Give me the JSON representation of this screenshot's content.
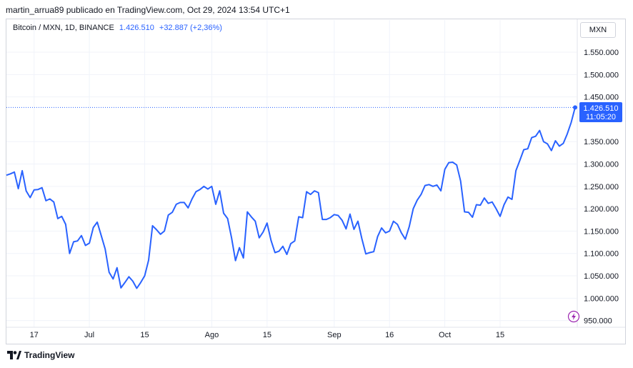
{
  "header": {
    "text": "martin_arrua89 publicado en TradingView.com, Oct 29, 2024 13:54 UTC+1"
  },
  "legend": {
    "symbol": "Bitcoin / MXN, 1D, BINANCE",
    "price": "1.426.510",
    "change": "+32.887 (+2,36%)"
  },
  "currency_button": {
    "label": "MXN"
  },
  "price_tag": {
    "price": "1.426.510",
    "countdown": "11:05:20"
  },
  "footer": {
    "brand": "TradingView"
  },
  "colors": {
    "line": "#2962ff",
    "grid": "#f0f3fa",
    "tag_bg": "#2962ff",
    "flash": "#9c27b0"
  },
  "icons": {
    "flash": "lightning-icon",
    "logo": "tradingview-logo-icon"
  },
  "chart_data": {
    "type": "line",
    "title": "",
    "xlabel": "",
    "ylabel": "",
    "ylim": [
      935000,
      1590000
    ],
    "y_ticks": [
      {
        "value": 950000,
        "label": "950.000"
      },
      {
        "value": 1000000,
        "label": "1.000.000"
      },
      {
        "value": 1050000,
        "label": "1.050.000"
      },
      {
        "value": 1100000,
        "label": "1.100.000"
      },
      {
        "value": 1150000,
        "label": "1.150.000"
      },
      {
        "value": 1200000,
        "label": "1.200.000"
      },
      {
        "value": 1250000,
        "label": "1.250.000"
      },
      {
        "value": 1300000,
        "label": "1.300.000"
      },
      {
        "value": 1350000,
        "label": "1.350.000"
      },
      {
        "value": 1450000,
        "label": "1.450.000"
      },
      {
        "value": 1500000,
        "label": "1.500.000"
      },
      {
        "value": 1550000,
        "label": "1.550.000"
      }
    ],
    "x_ticks": [
      {
        "index": 7,
        "label": "17"
      },
      {
        "index": 21,
        "label": "Jul"
      },
      {
        "index": 35,
        "label": "15"
      },
      {
        "index": 52,
        "label": "Ago"
      },
      {
        "index": 66,
        "label": "15"
      },
      {
        "index": 83,
        "label": "Sep"
      },
      {
        "index": 97,
        "label": "16"
      },
      {
        "index": 111,
        "label": "Oct"
      },
      {
        "index": 125,
        "label": "15"
      }
    ],
    "series": [
      {
        "values": [
          1275000,
          1278000,
          1282000,
          1245000,
          1285000,
          1240000,
          1225000,
          1242000,
          1243000,
          1247000,
          1218000,
          1222000,
          1215000,
          1178000,
          1183000,
          1165000,
          1100000,
          1126000,
          1128000,
          1140000,
          1118000,
          1123000,
          1158000,
          1170000,
          1140000,
          1110000,
          1058000,
          1043000,
          1068000,
          1023000,
          1035000,
          1048000,
          1038000,
          1022000,
          1035000,
          1050000,
          1085000,
          1162000,
          1153000,
          1143000,
          1150000,
          1186000,
          1192000,
          1210000,
          1214000,
          1214000,
          1202000,
          1222000,
          1238000,
          1243000,
          1250000,
          1244000,
          1250000,
          1210000,
          1240000,
          1190000,
          1178000,
          1135000,
          1084000,
          1113000,
          1090000,
          1193000,
          1182000,
          1172000,
          1135000,
          1148000,
          1168000,
          1129000,
          1102000,
          1105000,
          1116000,
          1098000,
          1122000,
          1128000,
          1182000,
          1180000,
          1238000,
          1232000,
          1240000,
          1236000,
          1176000,
          1176000,
          1180000,
          1187000,
          1185000,
          1174000,
          1155000,
          1188000,
          1154000,
          1172000,
          1133000,
          1099000,
          1102000,
          1104000,
          1138000,
          1157000,
          1146000,
          1150000,
          1172000,
          1165000,
          1146000,
          1132000,
          1160000,
          1200000,
          1219000,
          1232000,
          1252000,
          1254000,
          1250000,
          1253000,
          1240000,
          1288000,
          1303000,
          1304000,
          1298000,
          1262000,
          1193000,
          1192000,
          1181000,
          1209000,
          1208000,
          1224000,
          1212000,
          1215000,
          1200000,
          1183000,
          1209000,
          1226000,
          1221000,
          1285000,
          1308000,
          1332000,
          1334000,
          1359000,
          1362000,
          1375000,
          1350000,
          1345000,
          1330000,
          1352000,
          1340000,
          1346000,
          1367000,
          1393000,
          1426510
        ]
      }
    ]
  }
}
